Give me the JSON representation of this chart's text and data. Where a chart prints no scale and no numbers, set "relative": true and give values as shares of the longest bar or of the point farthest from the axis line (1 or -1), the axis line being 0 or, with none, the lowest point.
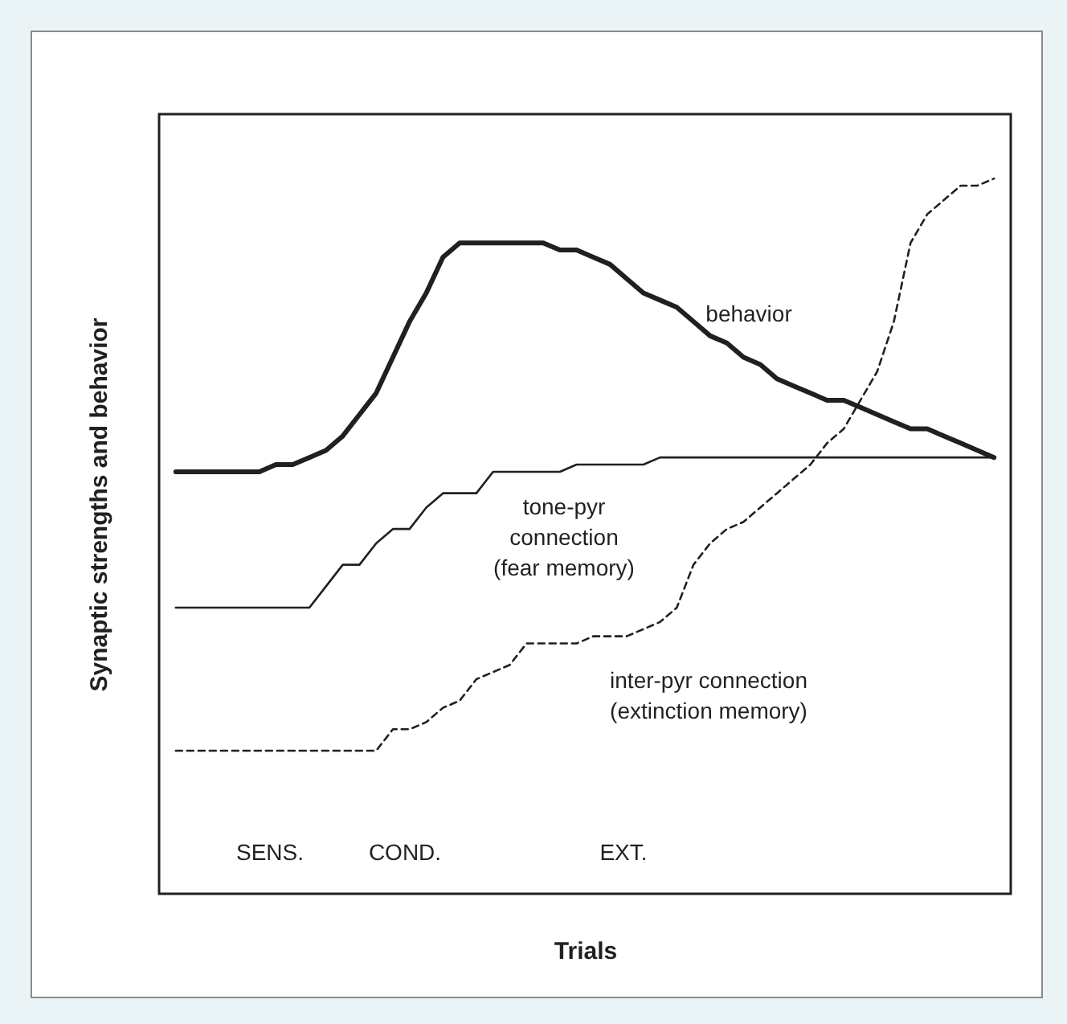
{
  "chart_data": {
    "type": "line",
    "relative": true,
    "xlabel": "Trials",
    "ylabel": "Synaptic strengths and behavior",
    "grid": false,
    "marker": "none",
    "annotations": [
      "SENS.",
      "COND.",
      "EXT."
    ],
    "categories": [
      null,
      null,
      null,
      null,
      null,
      null,
      null,
      null,
      null,
      null,
      null,
      null,
      null,
      null,
      null,
      null,
      null,
      null,
      null,
      null,
      null,
      null,
      null,
      null,
      null,
      null,
      null,
      null,
      null,
      null,
      null,
      null,
      null,
      null,
      null,
      null,
      null,
      null,
      null,
      null,
      null,
      null,
      null,
      null,
      null,
      null,
      null,
      null,
      null,
      null
    ],
    "series": [
      {
        "name": "behavior",
        "color": "#231f20",
        "line_style": "solid",
        "values": [
          0.59,
          0.59,
          0.59,
          0.59,
          0.59,
          0.59,
          0.6,
          0.6,
          0.61,
          0.62,
          0.64,
          0.67,
          0.7,
          0.75,
          0.8,
          0.84,
          0.89,
          0.91,
          0.91,
          0.91,
          0.91,
          0.91,
          0.91,
          0.9,
          0.9,
          0.89,
          0.88,
          0.86,
          0.84,
          0.83,
          0.82,
          0.8,
          0.78,
          0.77,
          0.75,
          0.74,
          0.72,
          0.71,
          0.7,
          0.69,
          0.69,
          0.68,
          0.67,
          0.66,
          0.65,
          0.65,
          0.64,
          0.63,
          0.62,
          0.61
        ]
      },
      {
        "name": "tone-pyr\nconnection\n(fear memory)",
        "color": "#231f20",
        "line_style": "solid",
        "values": [
          0.4,
          0.4,
          0.4,
          0.4,
          0.4,
          0.4,
          0.4,
          0.4,
          0.4,
          0.43,
          0.46,
          0.46,
          0.49,
          0.51,
          0.51,
          0.54,
          0.56,
          0.56,
          0.56,
          0.59,
          0.59,
          0.59,
          0.59,
          0.59,
          0.6,
          0.6,
          0.6,
          0.6,
          0.6,
          0.61,
          0.61,
          0.61,
          0.61,
          0.61,
          0.61,
          0.61,
          0.61,
          0.61,
          0.61,
          0.61,
          0.61,
          0.61,
          0.61,
          0.61,
          0.61,
          0.61,
          0.61,
          0.61,
          0.61,
          0.61
        ]
      },
      {
        "name": "inter-pyr connection\n(extinction memory)",
        "color": "#231f20",
        "line_style": "dashed",
        "values": [
          0.2,
          0.2,
          0.2,
          0.2,
          0.2,
          0.2,
          0.2,
          0.2,
          0.2,
          0.2,
          0.2,
          0.2,
          0.2,
          0.23,
          0.23,
          0.24,
          0.26,
          0.27,
          0.3,
          0.31,
          0.32,
          0.35,
          0.35,
          0.35,
          0.35,
          0.36,
          0.36,
          0.36,
          0.37,
          0.38,
          0.4,
          0.46,
          0.49,
          0.51,
          0.52,
          0.54,
          0.56,
          0.58,
          0.6,
          0.63,
          0.65,
          0.69,
          0.73,
          0.8,
          0.91,
          0.95,
          0.97,
          0.99,
          0.99,
          1
        ]
      }
    ]
  }
}
